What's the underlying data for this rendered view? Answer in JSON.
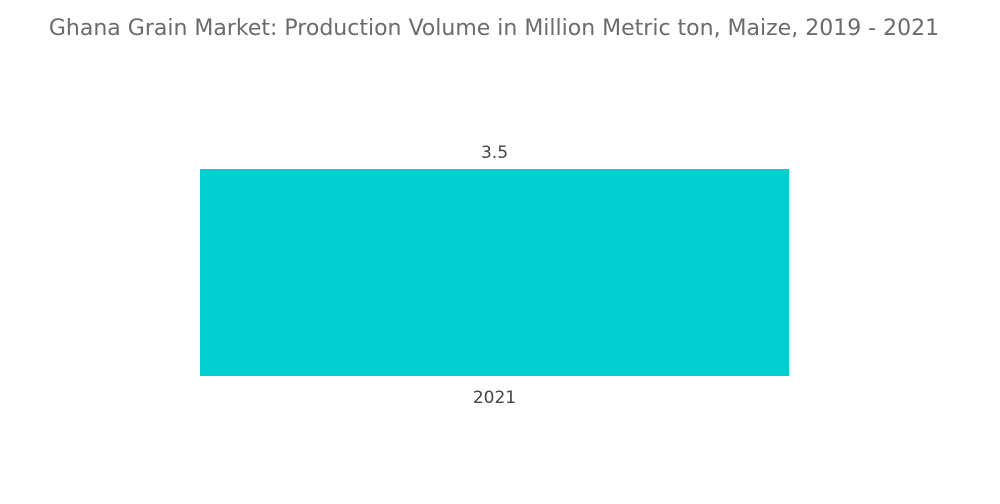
{
  "chart_data": {
    "type": "bar",
    "title": "Ghana Grain Market: Production Volume in Million Metric ton, Maize, 2019 - 2021",
    "categories": [
      "2021"
    ],
    "values": [
      3.5
    ],
    "data_labels": [
      "3.5"
    ],
    "xlabel": "",
    "ylabel": "",
    "ylim": [
      0,
      3.5
    ],
    "grid": false,
    "legend": "none",
    "bar_color": "#00CED1"
  }
}
